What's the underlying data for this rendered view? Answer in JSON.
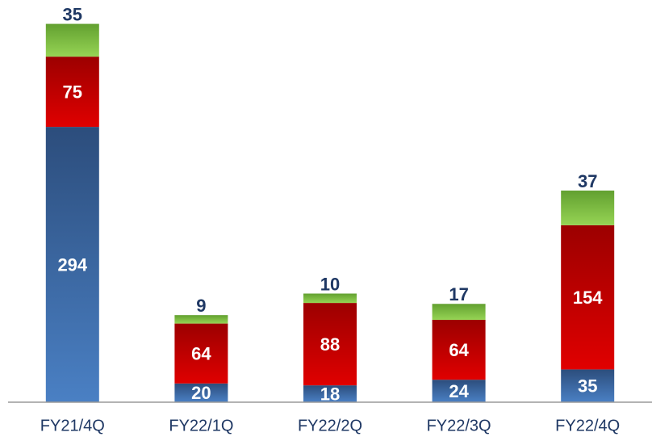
{
  "chart_data": {
    "type": "stacked_bar",
    "categories": [
      "FY21/4Q",
      "FY22/1Q",
      "FY22/2Q",
      "FY22/3Q",
      "FY22/4Q"
    ],
    "series": [
      {
        "color": "#3f70b0",
        "values": [
          294,
          20,
          18,
          24,
          35
        ]
      },
      {
        "color": "#c00000",
        "values": [
          75,
          64,
          88,
          64,
          154
        ]
      },
      {
        "color": "#7fbf3f",
        "values": [
          35,
          9,
          10,
          17,
          37
        ]
      }
    ],
    "ylim": [
      0,
      420
    ]
  }
}
